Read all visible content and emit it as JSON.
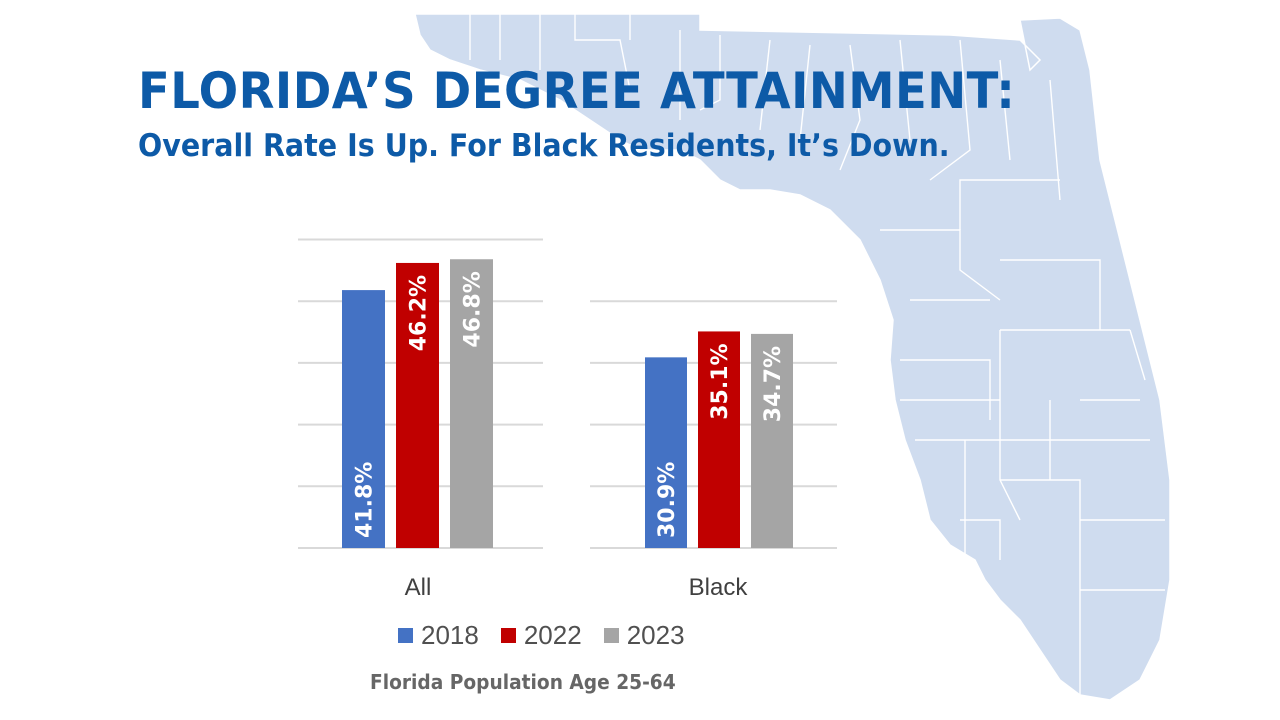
{
  "header": {
    "title": "FLORIDA’S DEGREE ATTAINMENT:",
    "subtitle": "Overall Rate Is Up. For Black Residents, It’s Down."
  },
  "footnote": "Florida Population Age 25-64",
  "colors": {
    "title": "#0d5aa7",
    "map_fill": "#cfdcef",
    "map_border": "#ffffff",
    "gridline": "#d9d9d9",
    "series_2018": "#4472c4",
    "series_2022": "#c00000",
    "series_2023": "#a5a5a5"
  },
  "background_image": "map of Florida counties (light blue)",
  "chart_data": {
    "type": "bar",
    "title": "",
    "xlabel": "",
    "ylabel": "",
    "categories": [
      "All",
      "Black"
    ],
    "series": [
      {
        "name": "2018",
        "values": [
          41.8,
          30.9
        ],
        "labels": [
          "41.8%",
          "30.9%"
        ]
      },
      {
        "name": "2022",
        "values": [
          46.2,
          35.1
        ],
        "labels": [
          "46.2%",
          "35.1%"
        ]
      },
      {
        "name": "2023",
        "values": [
          46.8,
          34.7
        ],
        "labels": [
          "46.8%",
          "34.7%"
        ]
      }
    ],
    "panels": [
      {
        "category": "All",
        "ylim": [
          0,
          50
        ],
        "gridlines": [
          0,
          10,
          20,
          30,
          40,
          50
        ]
      },
      {
        "category": "Black",
        "ylim": [
          0,
          40
        ],
        "gridlines": [
          0,
          10,
          20,
          30,
          40
        ]
      }
    ],
    "grid": true,
    "y_tick_labels_visible": false,
    "data_labels": "inside, rotated vertical",
    "legend": {
      "position": "bottom",
      "entries": [
        "2018",
        "2022",
        "2023"
      ]
    },
    "unit": "%"
  }
}
